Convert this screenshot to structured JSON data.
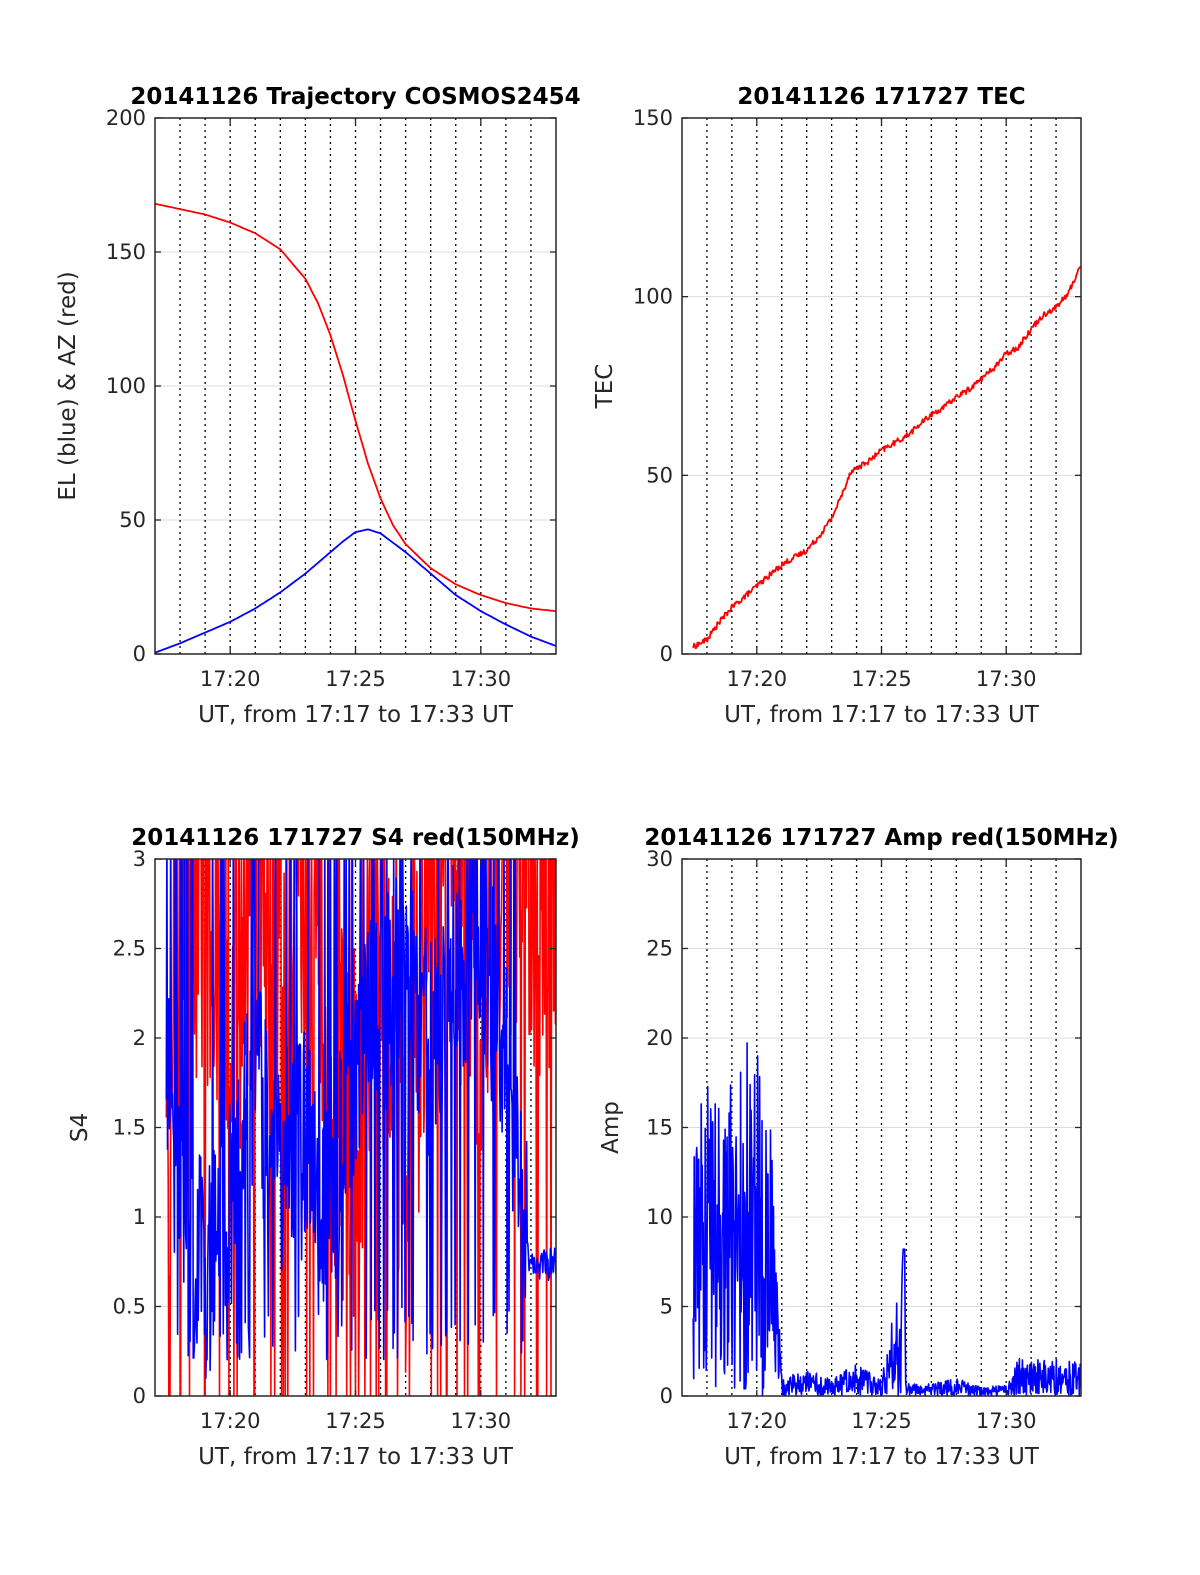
{
  "colors": {
    "red": "#ff0000",
    "blue": "#0000ff",
    "axis": "#262626",
    "grid": "#dcdcdc",
    "vline": "#000000"
  },
  "chart_data": [
    {
      "type": "line",
      "title": "20141126 Trajectory COSMOS2454",
      "xlabel": "UT, from 17:17 to 17:33 UT",
      "ylabel": "EL (blue) & AZ (red)",
      "xlim": [
        "17:17:00",
        "17:33:00"
      ],
      "ylim": [
        0,
        200
      ],
      "x_ticks": [
        "17:20",
        "17:25",
        "17:30"
      ],
      "y_ticks": [
        "0",
        "50",
        "100",
        "150",
        "200"
      ],
      "grid": true,
      "series": [
        {
          "color": "red",
          "x": [
            "17:17:00",
            "17:18:00",
            "17:19:00",
            "17:20:00",
            "17:21:00",
            "17:22:00",
            "17:23:00",
            "17:23:30",
            "17:24:00",
            "17:24:30",
            "17:25:00",
            "17:25:30",
            "17:26:00",
            "17:26:30",
            "17:27:00",
            "17:28:00",
            "17:29:00",
            "17:30:00",
            "17:31:00",
            "17:32:00",
            "17:33:00"
          ],
          "values": [
            168,
            166,
            164,
            161,
            157,
            151,
            140,
            131,
            119,
            104,
            87,
            71,
            58,
            48,
            41,
            32,
            26,
            22,
            19,
            17,
            16
          ]
        },
        {
          "color": "blue",
          "x": [
            "17:17:00",
            "17:18:00",
            "17:19:00",
            "17:20:00",
            "17:21:00",
            "17:22:00",
            "17:23:00",
            "17:24:00",
            "17:24:30",
            "17:25:00",
            "17:25:30",
            "17:26:00",
            "17:27:00",
            "17:28:00",
            "17:29:00",
            "17:30:00",
            "17:31:00",
            "17:32:00",
            "17:33:00"
          ],
          "values": [
            0.5,
            4,
            8,
            12,
            17,
            23,
            30,
            38,
            42,
            45.5,
            46.5,
            45,
            38,
            30,
            22,
            16,
            11,
            6.5,
            3
          ]
        }
      ]
    },
    {
      "type": "line",
      "title": "20141126 171727 TEC",
      "xlabel": "UT, from 17:17 to 17:33 UT",
      "ylabel": "TEC",
      "xlim": [
        "17:17:00",
        "17:33:00"
      ],
      "ylim": [
        0,
        150
      ],
      "x_ticks": [
        "17:20",
        "17:25",
        "17:30"
      ],
      "y_ticks": [
        "0",
        "50",
        "100",
        "150"
      ],
      "grid": true,
      "series": [
        {
          "color": "red",
          "x": [
            "17:17:27",
            "17:18:00",
            "17:18:30",
            "17:19:00",
            "17:19:30",
            "17:20:00",
            "17:20:30",
            "17:21:00",
            "17:21:30",
            "17:22:00",
            "17:22:30",
            "17:23:00",
            "17:23:30",
            "17:23:45",
            "17:24:00",
            "17:24:30",
            "17:25:00",
            "17:25:30",
            "17:26:00",
            "17:26:30",
            "17:27:00",
            "17:27:30",
            "17:28:00",
            "17:28:30",
            "17:29:00",
            "17:29:30",
            "17:30:00",
            "17:30:30",
            "17:31:00",
            "17:31:30",
            "17:32:00",
            "17:32:30",
            "17:33:00"
          ],
          "values": [
            2,
            4,
            9,
            13,
            16,
            19,
            22,
            25,
            27,
            29,
            33,
            38,
            46,
            51,
            52,
            54,
            57,
            59,
            61,
            64,
            67,
            69,
            72,
            74,
            77,
            80,
            84,
            86,
            91,
            95,
            97,
            101,
            109
          ]
        }
      ]
    },
    {
      "type": "line",
      "title": "20141126 171727 S4 red(150MHz)",
      "xlabel": "UT, from 17:17 to 17:33 UT",
      "ylabel": "S4",
      "xlim": [
        "17:17:00",
        "17:33:00"
      ],
      "ylim": [
        0,
        3
      ],
      "x_ticks": [
        "17:20",
        "17:25",
        "17:30"
      ],
      "y_ticks": [
        "0",
        "0.5",
        "1",
        "1.5",
        "2",
        "2.5",
        "3"
      ],
      "grid": true,
      "series": [
        {
          "color": "red",
          "x": [
            "17:17:27",
            "17:18:00",
            "17:19:00",
            "17:20:00",
            "17:21:00",
            "17:22:00",
            "17:23:00",
            "17:24:00",
            "17:25:00",
            "17:26:00",
            "17:27:00",
            "17:28:00",
            "17:29:00",
            "17:30:00",
            "17:31:00",
            "17:32:00",
            "17:33:00"
          ],
          "values": [
            1.5,
            2.6,
            3,
            2.2,
            3,
            2.4,
            3,
            1.8,
            1.6,
            2.5,
            1.2,
            3,
            3,
            2.5,
            3,
            2.8,
            3
          ]
        },
        {
          "color": "blue",
          "x": [
            "17:17:27",
            "17:18:00",
            "17:19:00",
            "17:20:00",
            "17:21:00",
            "17:22:00",
            "17:23:00",
            "17:24:00",
            "17:25:00",
            "17:26:00",
            "17:27:00",
            "17:28:00",
            "17:29:00",
            "17:30:00",
            "17:31:00",
            "17:32:00",
            "17:33:00"
          ],
          "values": [
            2.1,
            1.0,
            0.7,
            1.1,
            1.7,
            1.3,
            1.4,
            1.0,
            1.8,
            2.2,
            2.3,
            1.9,
            2.4,
            2.6,
            1.8,
            0.7,
            0.75
          ]
        }
      ]
    },
    {
      "type": "line",
      "title": "20141126 171727 Amp red(150MHz)",
      "xlabel": "UT, from 17:17 to 17:33 UT",
      "ylabel": "Amp",
      "xlim": [
        "17:17:00",
        "17:33:00"
      ],
      "ylim": [
        0,
        30
      ],
      "x_ticks": [
        "17:20",
        "17:25",
        "17:30"
      ],
      "y_ticks": [
        "0",
        "5",
        "10",
        "15",
        "20",
        "25",
        "30"
      ],
      "grid": true,
      "series": [
        {
          "color": "blue",
          "x": [
            "17:17:27",
            "17:18:00",
            "17:18:30",
            "17:19:00",
            "17:19:30",
            "17:20:00",
            "17:20:30",
            "17:21:00",
            "17:22:00",
            "17:23:00",
            "17:24:00",
            "17:25:00",
            "17:25:54",
            "17:26:00",
            "17:27:00",
            "17:28:00",
            "17:29:00",
            "17:30:00",
            "17:30:30",
            "17:31:00",
            "17:32:00",
            "17:33:00"
          ],
          "values": [
            14,
            17,
            18,
            17,
            19,
            20,
            17,
            1.0,
            1.5,
            1.0,
            1.8,
            0.9,
            8.2,
            0.8,
            0.7,
            1.0,
            0.5,
            0.6,
            2.2,
            2.0,
            2.1,
            1.9
          ]
        }
      ]
    }
  ]
}
